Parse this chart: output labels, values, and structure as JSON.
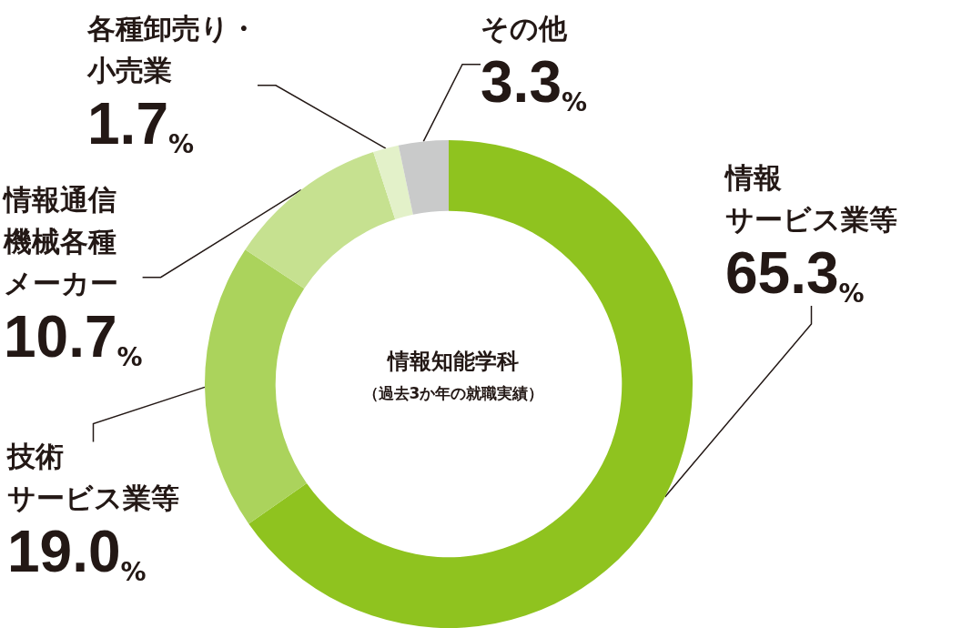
{
  "chart_data": {
    "type": "donut",
    "title": "情報知能学科",
    "subtitle": "（過去3か年の就職実績）",
    "categories": [
      "情報サービス業等",
      "技術サービス業等",
      "情報通信機械各種メーカー",
      "各種卸売り・小売業",
      "その他"
    ],
    "values": [
      65.3,
      19.0,
      10.7,
      1.7,
      3.3
    ],
    "value_labels": [
      "65.3%",
      "19.0%",
      "10.7%",
      "1.7%",
      "3.3%"
    ],
    "colors": [
      "#8fc31f",
      "#abd35c",
      "#c6e190",
      "#e3f1c9",
      "#c9caca"
    ],
    "legend": false
  }
}
